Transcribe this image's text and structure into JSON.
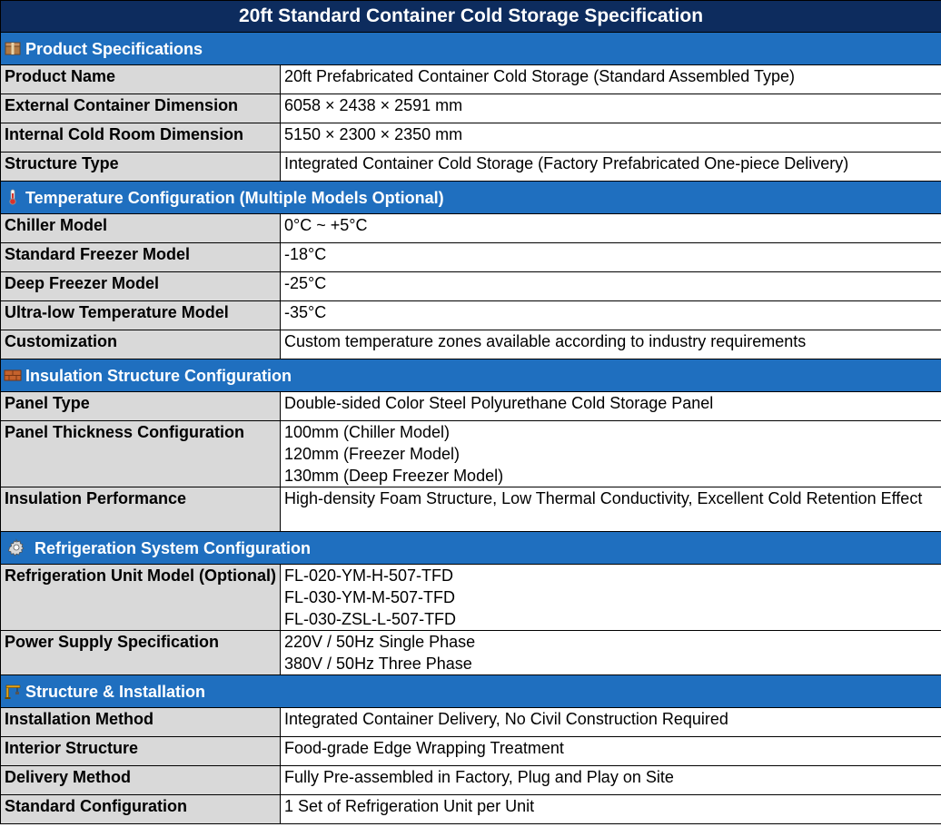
{
  "title": "20ft Standard Container Cold Storage Specification",
  "sections": {
    "product": {
      "icon": "package-icon",
      "header": "Product Specifications",
      "rows": [
        {
          "label": "Product Name",
          "value": "20ft Prefabricated Container Cold Storage (Standard Assembled Type)"
        },
        {
          "label": "External Container Dimension",
          "value": "6058 × 2438 × 2591 mm"
        },
        {
          "label": "Internal Cold Room Dimension",
          "value": "5150 × 2300 × 2350 mm"
        },
        {
          "label": "Structure Type",
          "value": "Integrated Container Cold Storage (Factory Prefabricated One-piece Delivery)"
        }
      ]
    },
    "temperature": {
      "icon": "thermometer-icon",
      "header": "Temperature Configuration (Multiple Models Optional)",
      "rows": [
        {
          "label": "Chiller Model",
          "value": "0°C ~ +5°C"
        },
        {
          "label": "Standard Freezer Model",
          "value": "-18°C"
        },
        {
          "label": "Deep Freezer Model",
          "value": "-25°C"
        },
        {
          "label": "Ultra-low Temperature Model",
          "value": "-35°C"
        },
        {
          "label": "Customization",
          "value": "Custom temperature zones available according to industry requirements"
        }
      ]
    },
    "insulation": {
      "icon": "bricks-icon",
      "header": "Insulation Structure Configuration",
      "rows": [
        {
          "label": "Panel Type",
          "value": "Double-sided Color Steel Polyurethane Cold Storage Panel"
        },
        {
          "label": "Panel Thickness Configuration",
          "values": [
            "100mm (Chiller Model)",
            "120mm (Freezer Model)",
            "130mm (Deep Freezer Model)"
          ]
        },
        {
          "label": "Insulation Performance",
          "value": "High-density Foam Structure, Low Thermal Conductivity, Excellent Cold Retention Effect"
        }
      ]
    },
    "refrigeration": {
      "icon": "gear-icon",
      "header": "Refrigeration System Configuration",
      "rows": [
        {
          "label": "Refrigeration Unit Model (Optional)",
          "values": [
            "FL-020-YM-H-507-TFD",
            "FL-030-YM-M-507-TFD",
            "FL-030-ZSL-L-507-TFD"
          ]
        },
        {
          "label": "Power Supply Specification",
          "values": [
            "220V / 50Hz Single Phase",
            "380V / 50Hz Three Phase"
          ]
        }
      ]
    },
    "installation": {
      "icon": "crane-icon",
      "header": "Structure & Installation",
      "rows": [
        {
          "label": "Installation Method",
          "value": "Integrated Container Delivery, No Civil Construction Required"
        },
        {
          "label": "Interior Structure",
          "value": "Food-grade Edge Wrapping Treatment"
        },
        {
          "label": "Delivery Method",
          "value": "Fully Pre-assembled in Factory, Plug and Play on Site"
        },
        {
          "label": "Standard Configuration",
          "value": "1 Set of Refrigeration Unit per Unit"
        }
      ]
    }
  }
}
